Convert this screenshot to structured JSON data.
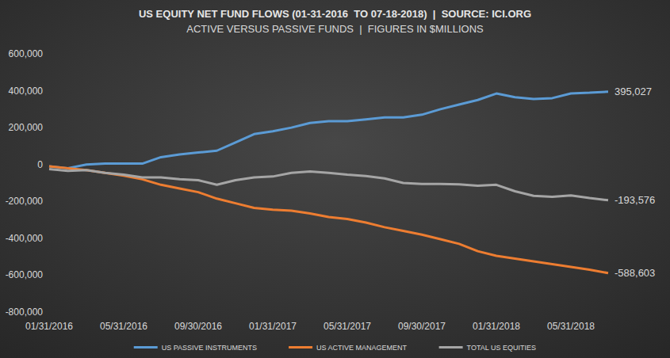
{
  "chart_data": {
    "type": "line",
    "title": "US EQUITY NET FUND FLOWS (01-31-2016  TO 07-18-2018)  |  SOURCE: ICI.ORG",
    "subtitle": "ACTIVE VERSUS PASSIVE FUNDS  |  FIGURES IN $MILLIONS",
    "categories": [
      "01/31/2016",
      null,
      null,
      null,
      "05/31/2016",
      null,
      null,
      null,
      "09/30/2016",
      null,
      null,
      null,
      "01/31/2017",
      null,
      null,
      null,
      "05/31/2017",
      null,
      null,
      null,
      "09/30/2017",
      null,
      null,
      null,
      "01/31/2018",
      null,
      null,
      null,
      "05/31/2018",
      null,
      null
    ],
    "series": [
      {
        "name": "US PASSIVE INSTRUMENTS",
        "color": "#5b9bd5",
        "values": [
          -10000,
          -20000,
          0,
          5000,
          5000,
          5000,
          40000,
          55000,
          65000,
          75000,
          120000,
          165000,
          180000,
          200000,
          225000,
          235000,
          235000,
          245000,
          255000,
          255000,
          270000,
          300000,
          325000,
          350000,
          385000,
          365000,
          355000,
          360000,
          385000,
          390000,
          395027
        ],
        "value_labels": [
          null,
          null,
          null,
          null,
          null,
          null,
          null,
          null,
          null,
          null,
          null,
          null,
          null,
          null,
          null,
          null,
          null,
          null,
          null,
          null,
          null,
          null,
          null,
          null,
          null,
          null,
          null,
          null,
          null,
          null,
          "395,027"
        ]
      },
      {
        "name": "US ACTIVE MANAGEMENT",
        "color": "#ed7d31",
        "values": [
          -10000,
          -20000,
          -30000,
          -45000,
          -60000,
          -80000,
          -110000,
          -130000,
          -150000,
          -185000,
          -210000,
          -235000,
          -245000,
          -250000,
          -265000,
          -285000,
          -295000,
          -315000,
          -340000,
          -360000,
          -380000,
          -405000,
          -430000,
          -470000,
          -495000,
          -510000,
          -525000,
          -540000,
          -555000,
          -570000,
          -588603
        ],
        "value_labels": [
          null,
          null,
          null,
          null,
          null,
          null,
          null,
          null,
          null,
          null,
          null,
          null,
          null,
          null,
          null,
          null,
          null,
          null,
          null,
          null,
          null,
          null,
          null,
          null,
          null,
          null,
          null,
          null,
          null,
          null,
          "-588,603"
        ]
      },
      {
        "name": "TOTAL US EQUITIES",
        "color": "#a5a5a5",
        "values": [
          -25000,
          -35000,
          -30000,
          -45000,
          -55000,
          -70000,
          -70000,
          -80000,
          -85000,
          -110000,
          -85000,
          -70000,
          -65000,
          -45000,
          -38000,
          -45000,
          -55000,
          -62000,
          -75000,
          -100000,
          -105000,
          -105000,
          -108000,
          -115000,
          -110000,
          -145000,
          -170000,
          -175000,
          -168000,
          -182000,
          -193576
        ],
        "value_labels": [
          null,
          null,
          null,
          null,
          null,
          null,
          null,
          null,
          null,
          null,
          null,
          null,
          null,
          null,
          null,
          null,
          null,
          null,
          null,
          null,
          null,
          null,
          null,
          null,
          null,
          null,
          null,
          null,
          null,
          null,
          "-193,576"
        ]
      }
    ],
    "ylim": [
      -800000,
      600000
    ],
    "yticks": [
      {
        "value": -800000,
        "label": "-800,000"
      },
      {
        "value": -600000,
        "label": "-600,000"
      },
      {
        "value": -400000,
        "label": "-400,000"
      },
      {
        "value": -200000,
        "label": "-200,000"
      },
      0,
      {
        "value": 200000,
        "label": "200,000"
      },
      {
        "value": 400000,
        "label": "400,000"
      },
      {
        "value": 600000,
        "label": "600,000"
      }
    ],
    "grid": false,
    "legend": "bottom"
  }
}
